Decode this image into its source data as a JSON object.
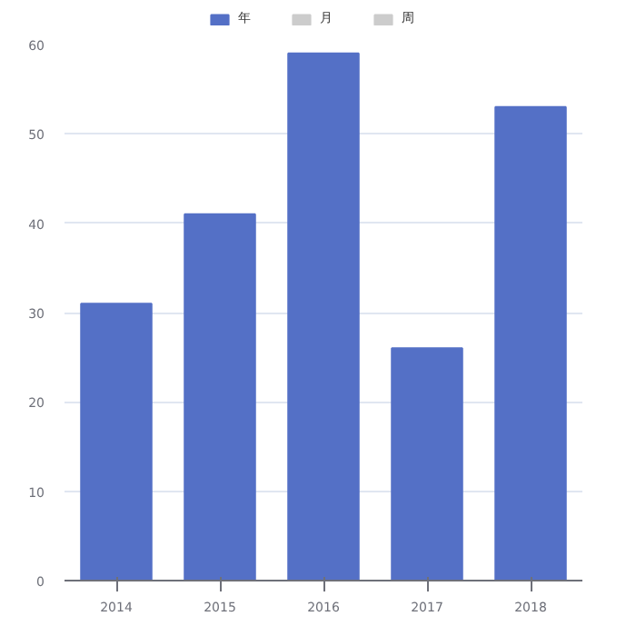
{
  "chart_data": {
    "type": "bar",
    "categories": [
      "2014",
      "2015",
      "2016",
      "2017",
      "2018"
    ],
    "series": [
      {
        "name": "年",
        "color": "#5470c6",
        "values": [
          31,
          41,
          59,
          26,
          53
        ]
      },
      {
        "name": "月",
        "color": "#cccccc",
        "values": [
          null,
          null,
          null,
          null,
          null
        ]
      },
      {
        "name": "周",
        "color": "#cccccc",
        "values": [
          null,
          null,
          null,
          null,
          null
        ]
      }
    ],
    "ylim": [
      0,
      60
    ],
    "yticks": [
      0,
      10,
      20,
      30,
      40,
      50,
      60
    ],
    "grid": "y",
    "legend": "top"
  }
}
